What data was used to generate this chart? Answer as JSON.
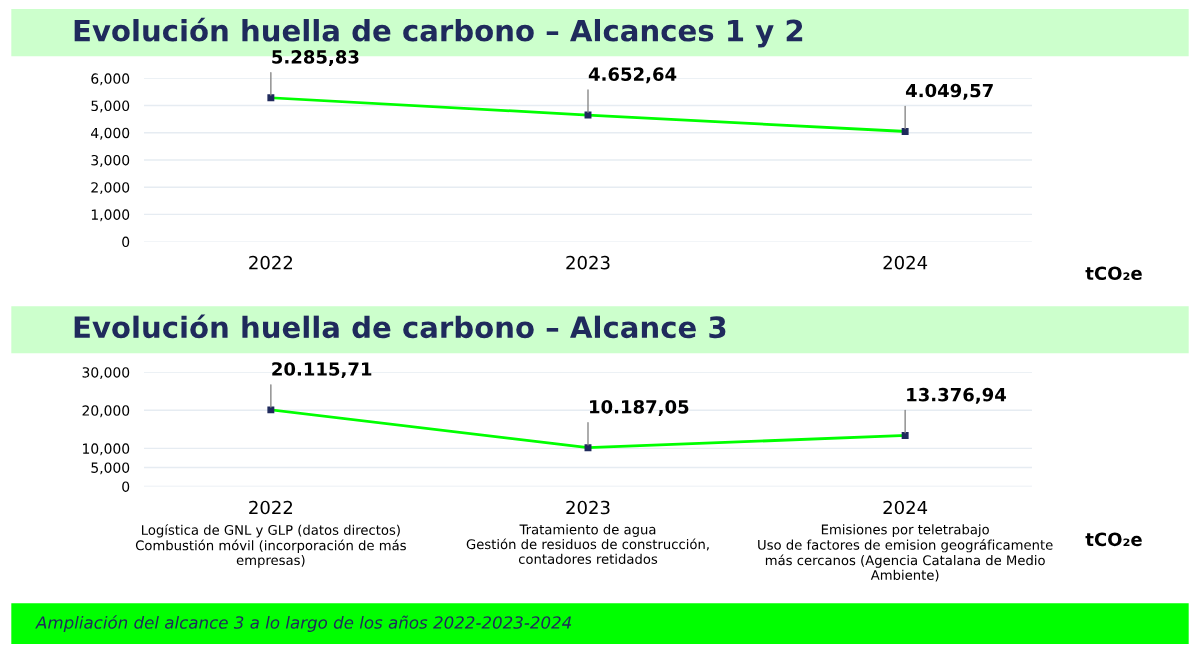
{
  "chart_data": [
    {
      "type": "line",
      "title": "Evolución huella de carbono – Alcances 1 y 2",
      "ylabel": "tCO₂e",
      "categories": [
        "2022",
        "2023",
        "2024"
      ],
      "series": [
        {
          "color": "#00ff00",
          "values": [
            5285.83,
            4652.64,
            4049.57
          ],
          "value_labels": [
            "5.285,83",
            "4.652,64",
            "4.049,57"
          ]
        }
      ],
      "ylim": [
        0,
        6000
      ],
      "yticks": [
        {
          "value": 0,
          "label": "0"
        },
        {
          "value": 1000,
          "label": "1,000"
        },
        {
          "value": 2000,
          "label": "2,000"
        },
        {
          "value": 3000,
          "label": "3,000"
        },
        {
          "value": 4000,
          "label": "4,000"
        },
        {
          "value": 5000,
          "label": "5,000"
        },
        {
          "value": 6000,
          "label": "6,000"
        }
      ],
      "grid": "y",
      "marker": "square",
      "line_style": "solid",
      "legend": false
    },
    {
      "type": "line",
      "title": "Evolución huella de carbono – Alcance 3",
      "ylabel": "tCO₂e",
      "categories": [
        "2022",
        "2023",
        "2024"
      ],
      "series": [
        {
          "color": "#00ff00",
          "values": [
            20115.71,
            10187.05,
            13376.94
          ],
          "value_labels": [
            "20.115,71",
            "10.187,05",
            "13.376,94"
          ]
        }
      ],
      "ylim": [
        0,
        30000
      ],
      "yticks": [
        {
          "value": 0,
          "label": "0"
        },
        {
          "value": 5000,
          "label": "5,000"
        },
        {
          "value": 10000,
          "label": "10,000"
        },
        {
          "value": 20000,
          "label": "20,000"
        },
        {
          "value": 30000,
          "label": "30,000"
        }
      ],
      "grid": "y",
      "marker": "square",
      "line_style": "solid",
      "legend": false,
      "annotations": [
        "Logística de GNL y GLP (datos directos)\nCombustión móvil (incorporación de más\nempresas)",
        "Tratamiento de agua\nGestión de residuos de construcción,\ncontadores retidados",
        "Emisiones por teletrabajo\nUso de factores de emision geográficamente\nmás cercanos (Agencia Catalana de Medio\nAmbiente)",
        "Ampliación del alcance 3 a lo largo de los años 2022-2023-2024"
      ]
    }
  ]
}
